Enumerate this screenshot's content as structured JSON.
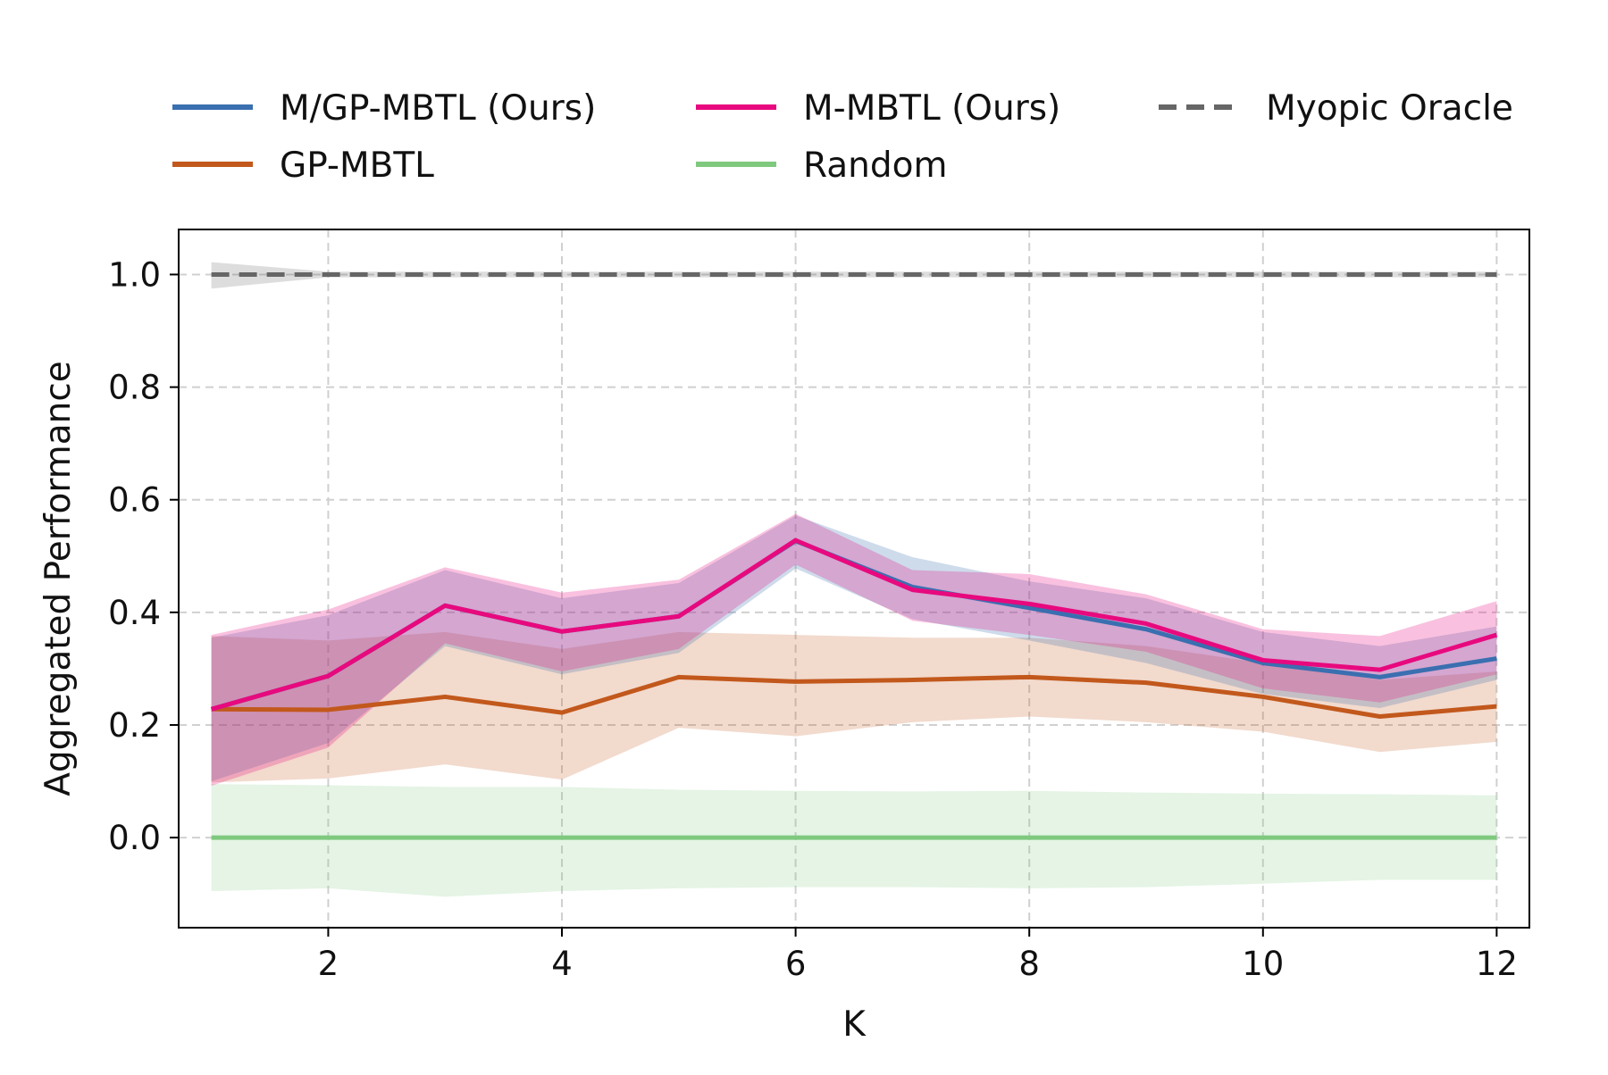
{
  "chart_data": {
    "type": "line",
    "title": "",
    "xlabel": "K",
    "ylabel": "Aggregated Performance",
    "xlim": [
      0.72,
      12.28
    ],
    "ylim": [
      -0.16,
      1.08
    ],
    "xticks": [
      2,
      4,
      6,
      8,
      10,
      12
    ],
    "yticks": [
      0.0,
      0.2,
      0.4,
      0.6,
      0.8,
      1.0
    ],
    "xtick_labels": [
      "2",
      "4",
      "6",
      "8",
      "10",
      "12"
    ],
    "ytick_labels": [
      "0.0",
      "0.2",
      "0.4",
      "0.6",
      "0.8",
      "1.0"
    ],
    "grid": true,
    "legend_position": "top",
    "x": [
      1,
      2,
      3,
      4,
      5,
      6,
      7,
      8,
      9,
      10,
      11,
      12
    ],
    "series": [
      {
        "name": "Myopic Oracle",
        "color": "#666666",
        "style": "dashed",
        "values": [
          1.0,
          1.0,
          1.0,
          1.0,
          1.0,
          1.0,
          1.0,
          1.0,
          1.0,
          1.0,
          1.0,
          1.0
        ],
        "lower": [
          0.975,
          0.995,
          0.995,
          0.995,
          0.995,
          0.995,
          0.995,
          0.995,
          0.995,
          0.995,
          0.995,
          0.995
        ],
        "upper": [
          1.022,
          1.005,
          1.005,
          1.005,
          1.005,
          1.005,
          1.005,
          1.005,
          1.005,
          1.005,
          1.005,
          1.005
        ]
      },
      {
        "name": "Random",
        "color": "#7fc97f",
        "style": "solid",
        "values": [
          0.0,
          0.0,
          0.0,
          0.0,
          0.0,
          0.0,
          0.0,
          0.0,
          0.0,
          0.0,
          0.0,
          0.0
        ],
        "lower": [
          -0.095,
          -0.09,
          -0.105,
          -0.095,
          -0.09,
          -0.088,
          -0.088,
          -0.09,
          -0.088,
          -0.082,
          -0.075,
          -0.075
        ],
        "upper": [
          0.095,
          0.093,
          0.09,
          0.09,
          0.085,
          0.083,
          0.082,
          0.083,
          0.08,
          0.078,
          0.077,
          0.075
        ]
      },
      {
        "name": "GP-MBTL",
        "color": "#c2581c",
        "style": "solid",
        "values": [
          0.228,
          0.227,
          0.25,
          0.222,
          0.285,
          0.277,
          0.28,
          0.285,
          0.275,
          0.25,
          0.215,
          0.233
        ],
        "lower": [
          0.098,
          0.105,
          0.13,
          0.103,
          0.195,
          0.18,
          0.205,
          0.215,
          0.205,
          0.188,
          0.152,
          0.17
        ],
        "upper": [
          0.358,
          0.35,
          0.365,
          0.335,
          0.365,
          0.36,
          0.355,
          0.355,
          0.34,
          0.31,
          0.28,
          0.295
        ]
      },
      {
        "name": "M/GP-MBTL (Ours)",
        "color": "#3a6fb0",
        "style": "solid",
        "values": [
          0.228,
          0.287,
          0.412,
          0.366,
          0.393,
          0.527,
          0.445,
          0.408,
          0.37,
          0.31,
          0.285,
          0.318
        ],
        "lower": [
          0.1,
          0.168,
          0.34,
          0.29,
          0.328,
          0.478,
          0.388,
          0.35,
          0.31,
          0.255,
          0.23,
          0.28
        ],
        "upper": [
          0.355,
          0.395,
          0.475,
          0.425,
          0.452,
          0.572,
          0.498,
          0.455,
          0.425,
          0.365,
          0.34,
          0.375
        ]
      },
      {
        "name": "M-MBTL (Ours)",
        "color": "#e8097e",
        "style": "solid",
        "values": [
          0.228,
          0.287,
          0.412,
          0.366,
          0.393,
          0.528,
          0.44,
          0.415,
          0.38,
          0.315,
          0.298,
          0.36
        ],
        "lower": [
          0.092,
          0.16,
          0.345,
          0.295,
          0.335,
          0.485,
          0.385,
          0.36,
          0.33,
          0.265,
          0.24,
          0.29
        ],
        "upper": [
          0.36,
          0.405,
          0.48,
          0.435,
          0.458,
          0.575,
          0.475,
          0.468,
          0.432,
          0.37,
          0.358,
          0.42
        ]
      }
    ],
    "legend": {
      "rows": [
        [
          "M/GP-MBTL (Ours)",
          "M-MBTL (Ours)",
          "Myopic Oracle"
        ],
        [
          "GP-MBTL",
          "Random"
        ]
      ]
    }
  }
}
